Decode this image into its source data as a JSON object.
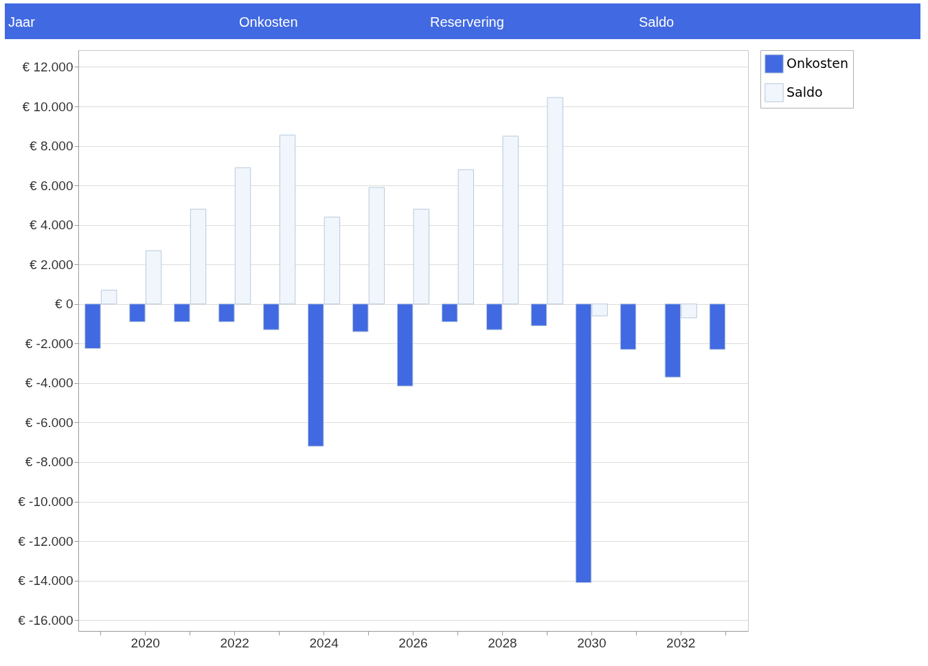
{
  "chart_data": {
    "type": "bar",
    "annotations": [
      "Jaar",
      "Onkosten",
      "Reservering",
      "Saldo"
    ],
    "categories": [
      null,
      "2020",
      null,
      "2022",
      null,
      "2024",
      null,
      "2026",
      null,
      "2028",
      null,
      "2030",
      null,
      "2032",
      null
    ],
    "series": [
      {
        "name": "Onkosten",
        "color": "#4169e1",
        "values": [
          -2250,
          -900,
          -900,
          -900,
          -1300,
          -7200,
          -1400,
          -4150,
          -900,
          -1300,
          -1100,
          -14100,
          -2300,
          -3700,
          -2300
        ]
      },
      {
        "name": "Saldo",
        "color": "#f0f6fc",
        "values": [
          700,
          2700,
          4800,
          6900,
          8550,
          4400,
          5900,
          4800,
          6800,
          8500,
          10450,
          -600,
          null,
          -700,
          null
        ]
      }
    ],
    "ylim": [
      -16550,
      12850
    ],
    "yticks": [
      {
        "value": -16000,
        "label": "€ -16.000"
      },
      {
        "value": -14000,
        "label": "€ -14.000"
      },
      {
        "value": -12000,
        "label": "€ -12.000"
      },
      {
        "value": -10000,
        "label": "€ -10.000"
      },
      {
        "value": -8000,
        "label": "€ -8.000"
      },
      {
        "value": -6000,
        "label": "€ -6.000"
      },
      {
        "value": -4000,
        "label": "€ -4.000"
      },
      {
        "value": -2000,
        "label": "€ -2.000"
      },
      {
        "value": 0,
        "label": "€ 0"
      },
      {
        "value": 2000,
        "label": "€ 2.000"
      },
      {
        "value": 4000,
        "label": "€ 4.000"
      },
      {
        "value": 6000,
        "label": "€ 6.000"
      },
      {
        "value": 8000,
        "label": "€ 8.000"
      },
      {
        "value": 10000,
        "label": "€ 10.000"
      },
      {
        "value": 12000,
        "label": "€ 12.000"
      }
    ],
    "grid": "y",
    "legend": "top right"
  }
}
